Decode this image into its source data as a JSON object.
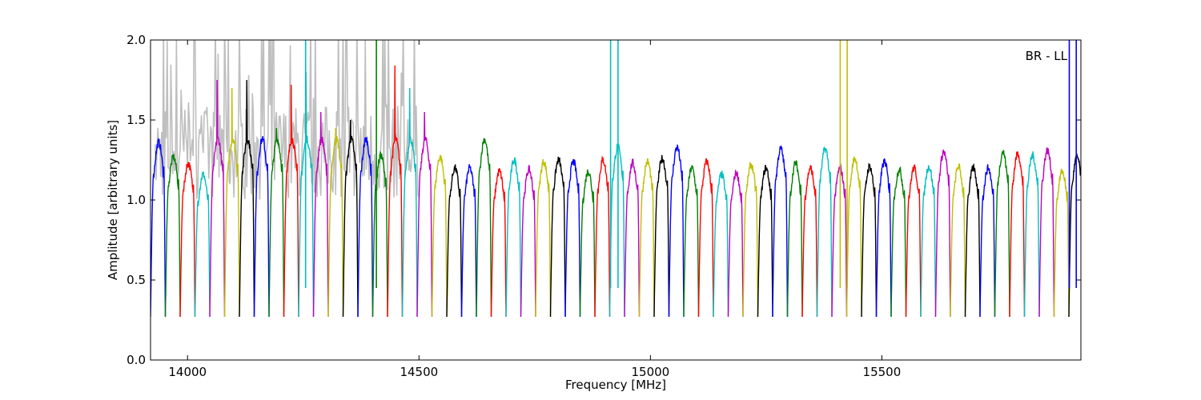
{
  "chart_data": {
    "type": "line",
    "xlabel": "Frequency [MHz]",
    "ylabel": "Amplitude [arbitrary units]",
    "annotation": "BR - LL",
    "xlim": [
      13920,
      15930
    ],
    "ylim": [
      0.0,
      2.0
    ],
    "x_ticks": [
      14000,
      14500,
      15000,
      15500
    ],
    "x_tick_labels": [
      "14000",
      "14500",
      "15000",
      "15500"
    ],
    "y_ticks": [
      0.0,
      0.5,
      1.0,
      1.5,
      2.0
    ],
    "y_tick_labels": [
      "0.0",
      "0.5",
      "1.0",
      "1.5",
      "2.0"
    ],
    "grid": false,
    "background_series_color": "#bfbfbf",
    "channel_width_mhz": 32,
    "channel_colors": [
      "#0000ff",
      "#008000",
      "#ff0000",
      "#00bfbf",
      "#bf00bf",
      "#bfbf00",
      "#000000"
    ],
    "first_channel_start_mhz": 13920,
    "channel_count": 63,
    "channel_peak_levels": [
      1.38,
      1.29,
      1.25,
      1.18,
      1.75,
      1.7,
      1.75,
      1.4,
      1.45,
      1.72,
      1.8,
      1.55,
      1.45,
      1.5,
      1.4,
      1.3,
      1.84,
      1.7,
      1.55,
      1.29,
      1.22,
      1.22,
      1.4,
      1.2,
      1.27,
      1.21,
      1.26,
      1.27,
      1.26,
      1.2,
      1.27,
      1.35,
      1.25,
      1.26,
      1.28,
      1.35,
      1.22,
      1.26,
      1.18,
      1.19,
      1.24,
      1.22,
      1.34,
      1.25,
      1.22,
      1.34,
      1.22,
      1.28,
      1.23,
      1.26,
      1.21,
      1.22,
      1.23,
      1.32,
      1.23,
      1.22,
      1.22,
      1.32,
      1.31,
      1.3,
      1.33,
      1.2,
      1.29
    ],
    "spikes": [
      {
        "x": 14255,
        "max": 2.0,
        "color_index": 3
      },
      {
        "x": 14408,
        "max": 2.0,
        "color_index": 1
      },
      {
        "x": 14914,
        "max": 2.0,
        "color_index": 3
      },
      {
        "x": 14930,
        "max": 2.0,
        "color_index": 3
      },
      {
        "x": 15410,
        "max": 2.0,
        "color_index": 5
      },
      {
        "x": 15425,
        "max": 2.0,
        "color_index": 5
      },
      {
        "x": 15905,
        "max": 2.0,
        "color_index": 0
      },
      {
        "x": 15920,
        "max": 2.0,
        "color_index": 0
      }
    ],
    "rfi_region_mhz": [
      13930,
      14500
    ]
  }
}
